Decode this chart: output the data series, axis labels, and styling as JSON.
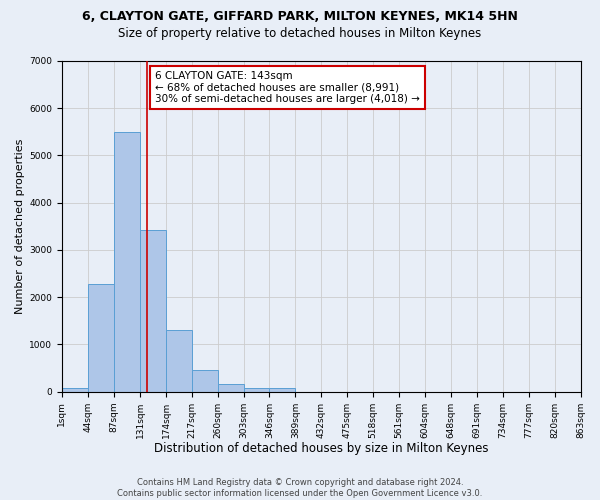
{
  "title1": "6, CLAYTON GATE, GIFFARD PARK, MILTON KEYNES, MK14 5HN",
  "title2": "Size of property relative to detached houses in Milton Keynes",
  "xlabel": "Distribution of detached houses by size in Milton Keynes",
  "ylabel": "Number of detached properties",
  "footer1": "Contains HM Land Registry data © Crown copyright and database right 2024.",
  "footer2": "Contains public sector information licensed under the Open Government Licence v3.0.",
  "bins": [
    1,
    44,
    87,
    131,
    174,
    217,
    260,
    303,
    346,
    389,
    432,
    475,
    518,
    561,
    604,
    648,
    691,
    734,
    777,
    820,
    863
  ],
  "bar_values": [
    80,
    2270,
    5500,
    3430,
    1300,
    470,
    160,
    80,
    80,
    0,
    0,
    0,
    0,
    0,
    0,
    0,
    0,
    0,
    0,
    0
  ],
  "bar_color": "#aec6e8",
  "bar_edge_color": "#5a9fd4",
  "grid_color": "#cccccc",
  "bg_color": "#e8eef7",
  "property_sqm": 143,
  "vline_color": "#cc0000",
  "annotation_line1": "6 CLAYTON GATE: 143sqm",
  "annotation_line2": "← 68% of detached houses are smaller (8,991)",
  "annotation_line3": "30% of semi-detached houses are larger (4,018) →",
  "annotation_box_color": "#ffffff",
  "annotation_border_color": "#cc0000",
  "ylim": [
    0,
    7000
  ],
  "title1_fontsize": 9,
  "title2_fontsize": 8.5,
  "xlabel_fontsize": 8.5,
  "ylabel_fontsize": 8,
  "annotation_fontsize": 7.5,
  "tick_fontsize": 6.5,
  "footer_fontsize": 6
}
